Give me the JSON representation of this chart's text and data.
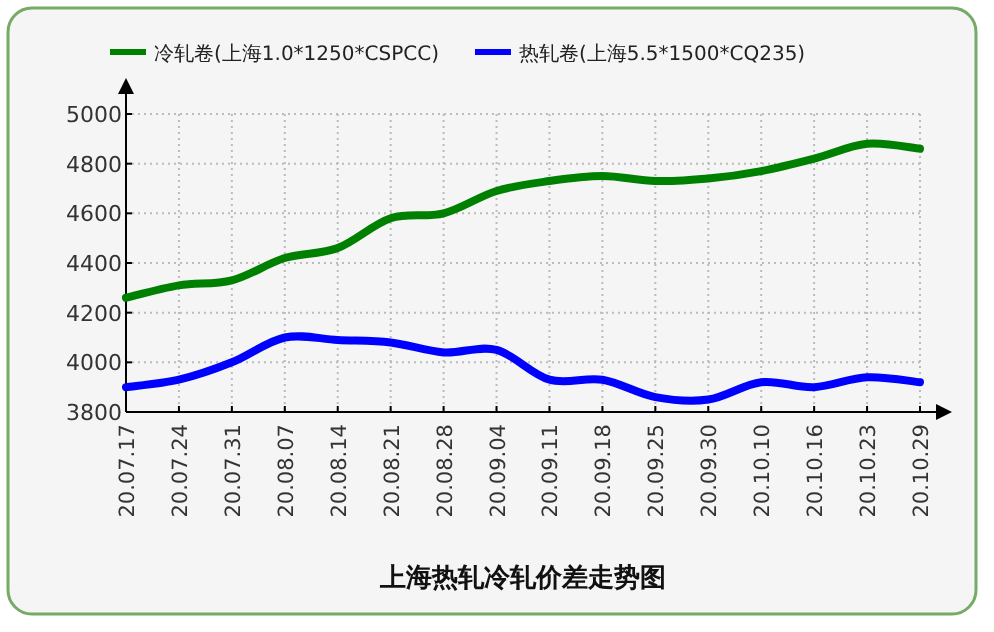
{
  "chart_data": {
    "type": "line",
    "title": "上海热轧冷轧价差走势图",
    "categories": [
      "20.07.17",
      "20.07.24",
      "20.07.31",
      "20.08.07",
      "20.08.14",
      "20.08.21",
      "20.08.28",
      "20.09.04",
      "20.09.11",
      "20.09.18",
      "20.09.25",
      "20.09.30",
      "20.10.10",
      "20.10.16",
      "20.10.23",
      "20.10.29"
    ],
    "series": [
      {
        "name": "冷轧卷(上海1.0*1250*CSPCC)",
        "color": "#008000",
        "values": [
          4260,
          4310,
          4330,
          4420,
          4460,
          4580,
          4600,
          4690,
          4730,
          4750,
          4730,
          4740,
          4770,
          4820,
          4880,
          4860
        ]
      },
      {
        "name": "热轧卷(上海5.5*1500*CQ235)",
        "color": "#0000ff",
        "values": [
          3900,
          3930,
          4000,
          4100,
          4090,
          4080,
          4040,
          4050,
          3930,
          3930,
          3860,
          3850,
          3920,
          3900,
          3940,
          3920
        ]
      }
    ],
    "ylim": [
      3800,
      5000
    ],
    "yticks": [
      3800,
      4000,
      4200,
      4400,
      4600,
      4800,
      5000
    ],
    "grid": true,
    "legend": "top",
    "marker": "none",
    "line_style": "solid"
  }
}
